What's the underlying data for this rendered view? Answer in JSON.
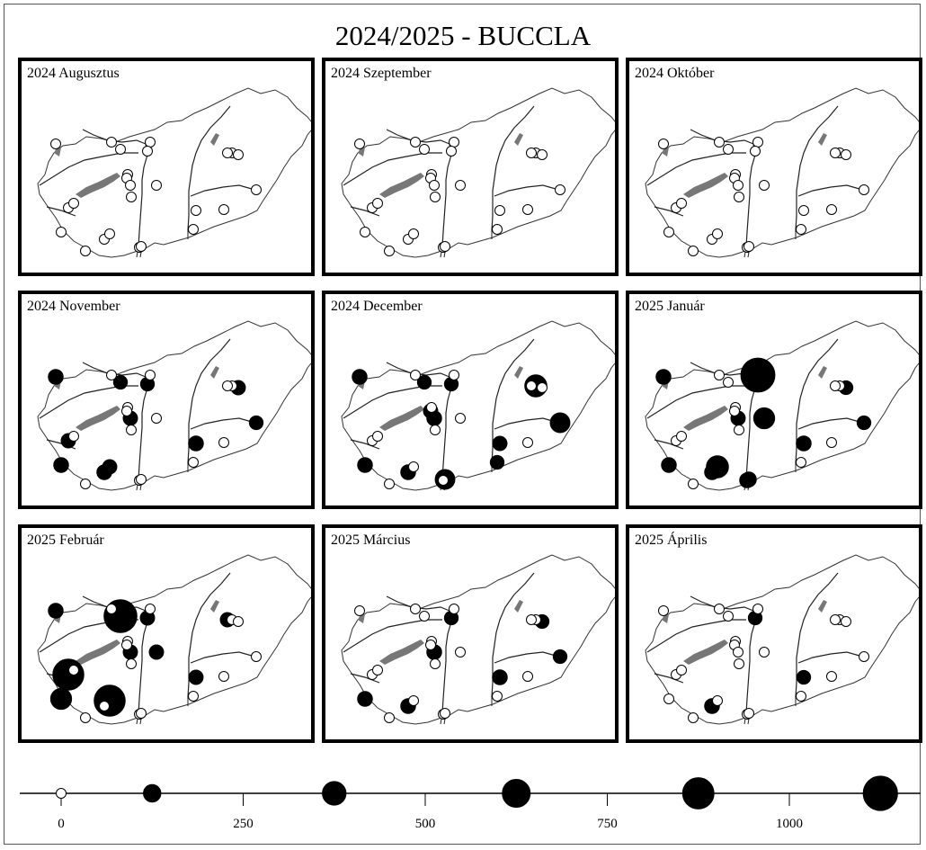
{
  "title": "2024/2025 - BUCCLA",
  "colors": {
    "present": "#000000",
    "absent": "#ffffff",
    "lake": "#777777",
    "border": "#333333",
    "river": "#222222"
  },
  "map_stations": [
    "s01",
    "s02",
    "s03",
    "s04",
    "s05",
    "s06",
    "s07",
    "s08",
    "s09",
    "s10",
    "s11",
    "s12",
    "s13",
    "s14",
    "s15",
    "s16",
    "s17",
    "s18",
    "s19",
    "s20",
    "s21",
    "s22",
    "s23",
    "s24",
    "s25"
  ],
  "panels": [
    {
      "label": "2024 Augusztus",
      "counts": [
        0,
        0,
        0,
        0,
        0,
        0,
        0,
        0,
        0,
        0,
        0,
        0,
        0,
        0,
        0,
        0,
        0,
        0,
        0,
        0,
        0,
        0,
        0,
        0,
        0
      ]
    },
    {
      "label": "2024 Szeptember",
      "counts": [
        0,
        0,
        0,
        0,
        0,
        0,
        0,
        0,
        0,
        0,
        0,
        0,
        0,
        0,
        0,
        0,
        0,
        0,
        0,
        0,
        0,
        0,
        0,
        0,
        0
      ]
    },
    {
      "label": "2024 Október",
      "counts": [
        0,
        0,
        0,
        0,
        0,
        0,
        0,
        0,
        0,
        0,
        0,
        0,
        0,
        0,
        0,
        0,
        0,
        0,
        0,
        0,
        0,
        0,
        0,
        0,
        0
      ]
    },
    {
      "label": "2024 November",
      "counts": [
        60,
        0,
        40,
        0,
        50,
        0,
        0,
        0,
        50,
        0,
        0,
        0,
        50,
        0,
        40,
        60,
        0,
        0,
        60,
        0,
        60,
        50,
        0,
        0,
        40
      ]
    },
    {
      "label": "2024 December",
      "counts": [
        60,
        0,
        40,
        0,
        0,
        0,
        0,
        50,
        60,
        0,
        0,
        300,
        0,
        0,
        200,
        50,
        40,
        0,
        60,
        0,
        60,
        0,
        0,
        200,
        40
      ]
    },
    {
      "label": "2025 Január",
      "counts": [
        60,
        0,
        0,
        1100,
        0,
        0,
        0,
        0,
        50,
        0,
        250,
        0,
        40,
        0,
        40,
        60,
        0,
        0,
        60,
        0,
        60,
        300,
        60,
        60,
        40
      ]
    },
    {
      "label": "2025 Február",
      "counts": [
        60,
        0,
        1000,
        0,
        850,
        0,
        0,
        0,
        50,
        0,
        50,
        0,
        0,
        50,
        0,
        50,
        0,
        0,
        250,
        0,
        0,
        850,
        0,
        0,
        50
      ]
    },
    {
      "label": "2025 Március",
      "counts": [
        0,
        0,
        0,
        0,
        0,
        0,
        0,
        0,
        60,
        0,
        0,
        0,
        40,
        0,
        40,
        60,
        0,
        0,
        60,
        0,
        60,
        0,
        0,
        0,
        40
      ]
    },
    {
      "label": "2025 Április",
      "counts": [
        0,
        0,
        0,
        0,
        0,
        0,
        0,
        0,
        0,
        0,
        0,
        0,
        0,
        0,
        0,
        40,
        0,
        0,
        0,
        0,
        60,
        0,
        0,
        0,
        40
      ]
    }
  ],
  "legend": {
    "ticks": [
      "0",
      "250",
      "500",
      "750",
      "1000"
    ],
    "symbol_values": [
      0,
      125,
      375,
      625,
      875,
      1125
    ]
  }
}
